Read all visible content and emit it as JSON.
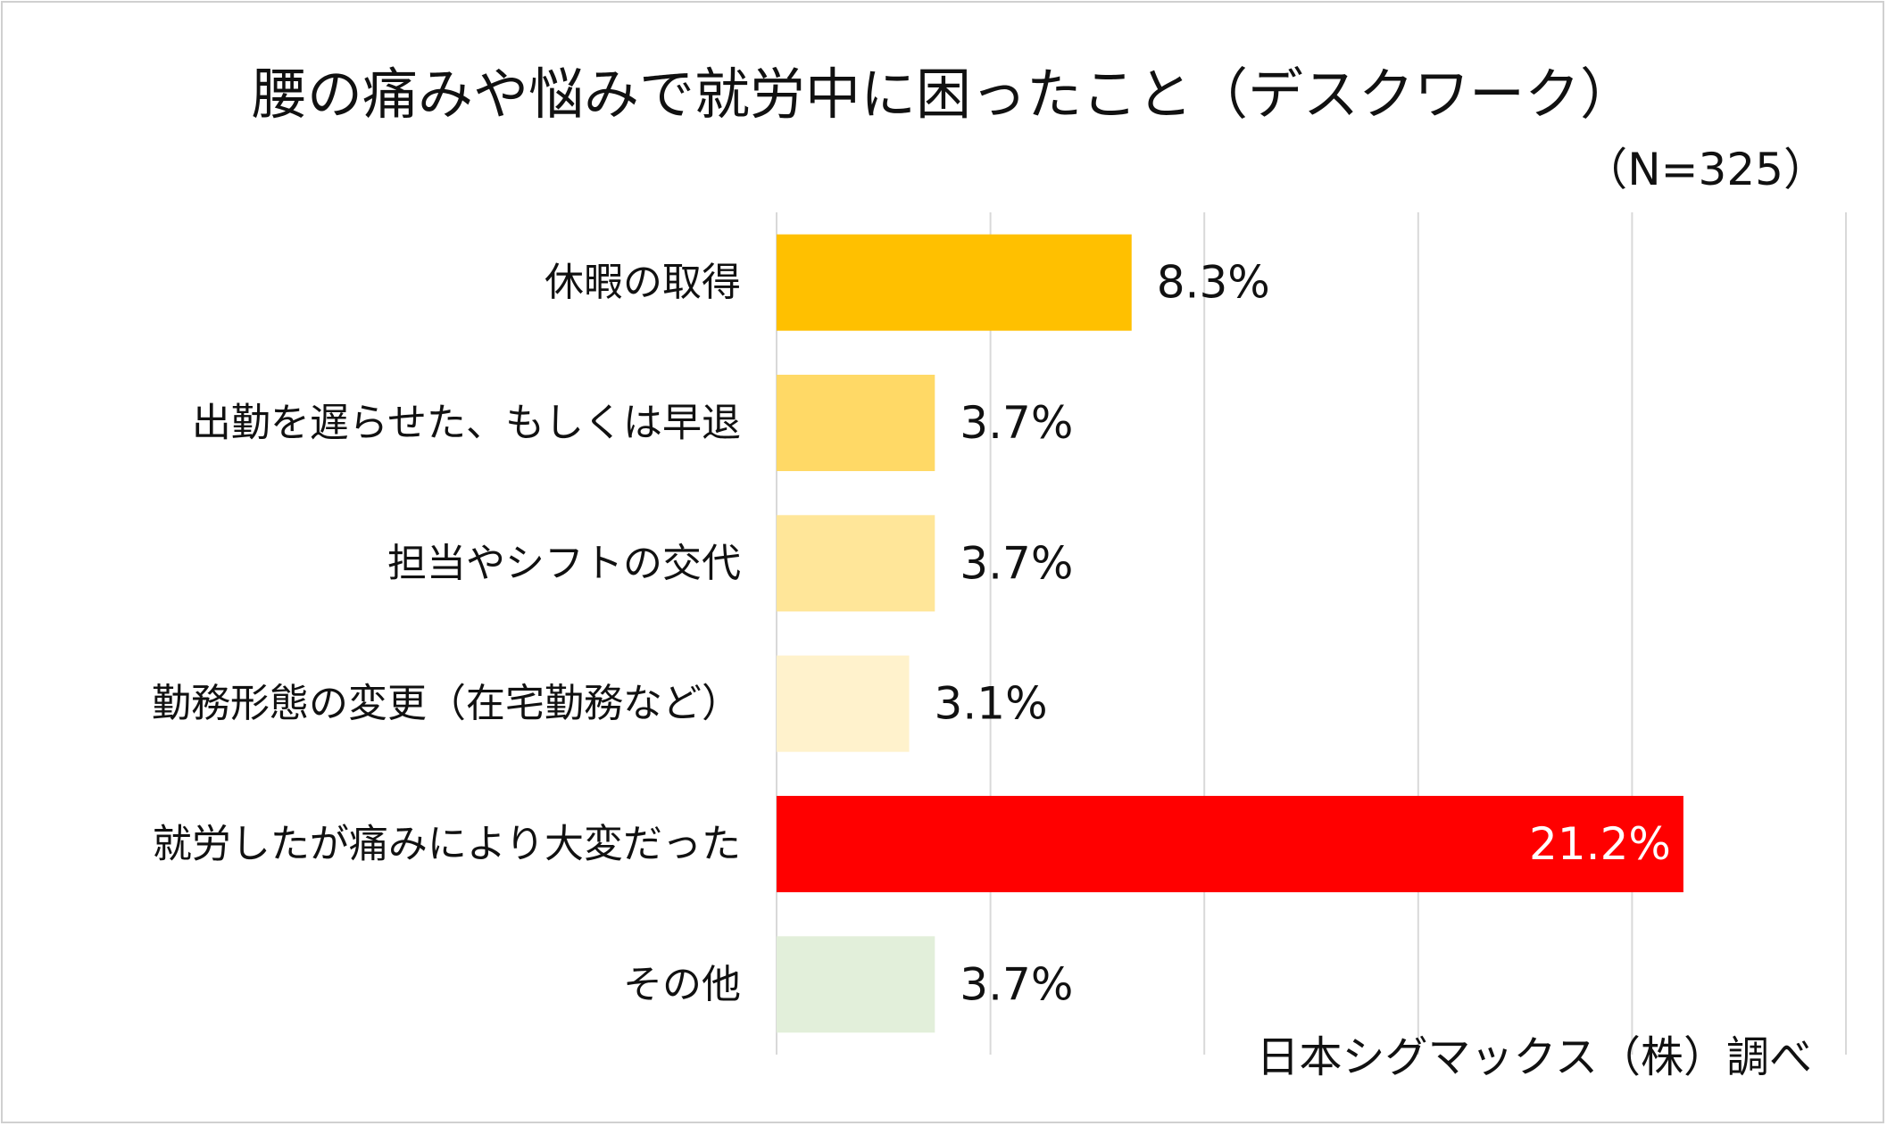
{
  "chart_data": {
    "type": "bar",
    "orientation": "horizontal",
    "title": "腰の痛みや悩みで就労中に困ったこと（デスクワーク）",
    "subtitle": "（N=325）",
    "source": "日本シグマックス（株）調べ",
    "categories": [
      "休暇の取得",
      "出勤を遅らせた、もしくは早退",
      "担当やシフトの交代",
      "勤務形態の変更（在宅勤務など）",
      "就労したが痛みにより大変だった",
      "その他"
    ],
    "values": [
      8.3,
      3.7,
      3.7,
      3.1,
      21.2,
      3.7
    ],
    "value_labels": [
      "8.3%",
      "3.7%",
      "3.7%",
      "3.1%",
      "21.2%",
      "3.7%"
    ],
    "colors": [
      "#FFC000",
      "#FFD966",
      "#FFE699",
      "#FFF2CC",
      "#FF0000",
      "#E2EFDA"
    ],
    "xlim": [
      0,
      25
    ],
    "grid": true,
    "legend": "none"
  }
}
